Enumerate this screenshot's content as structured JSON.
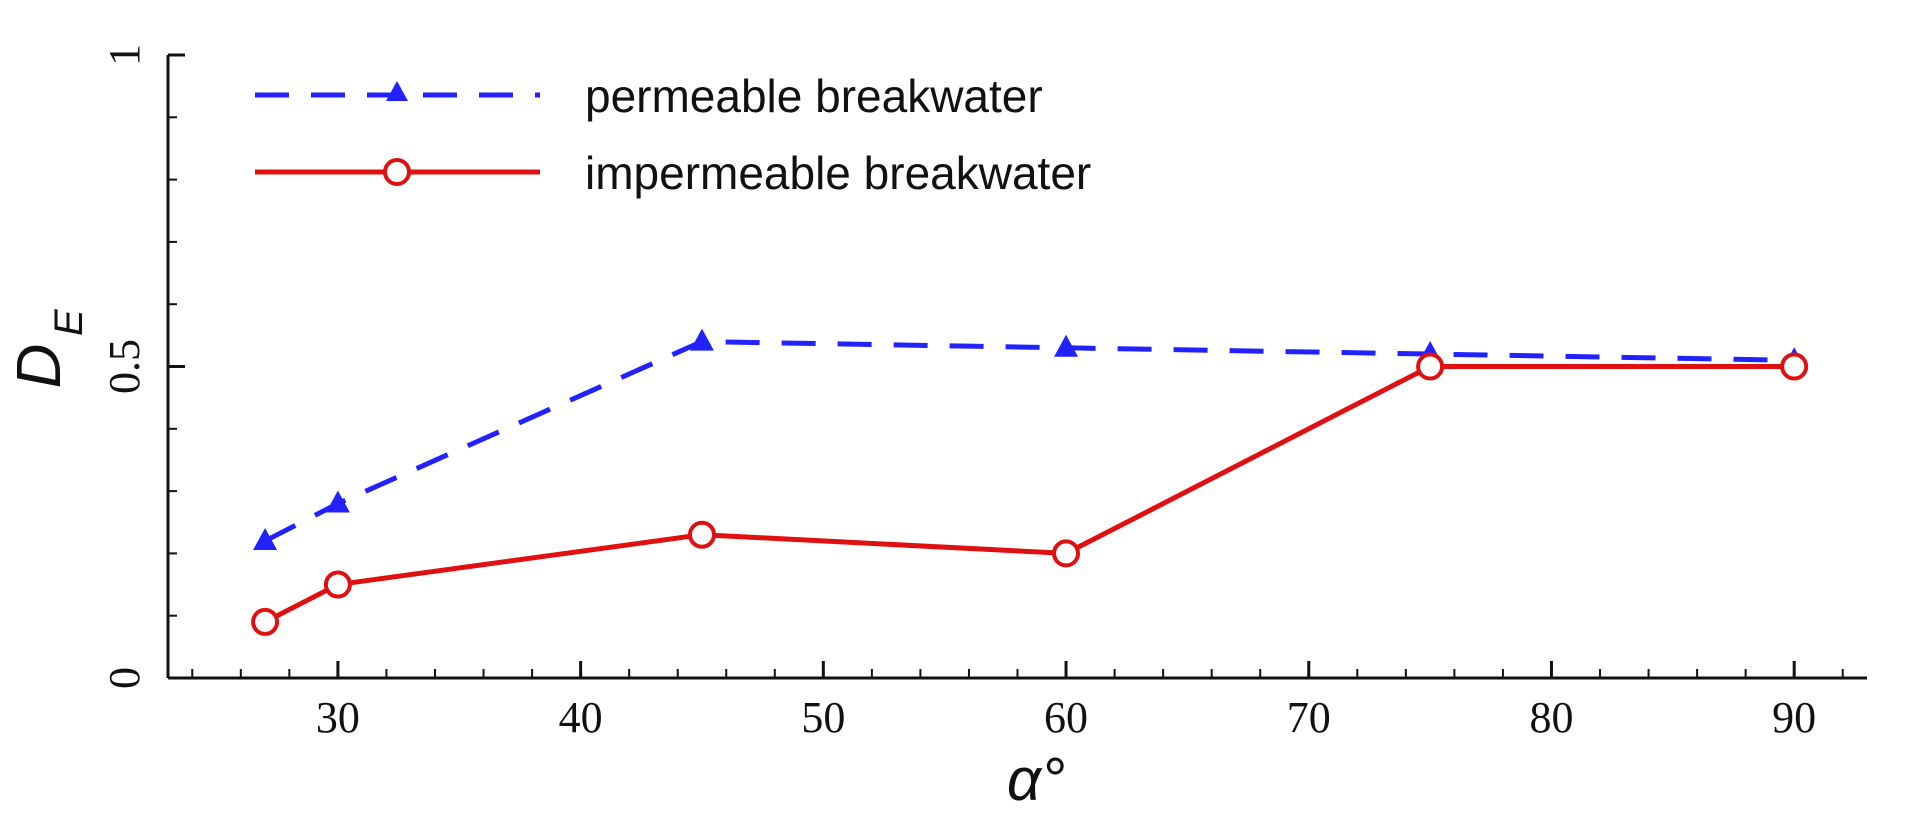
{
  "chart_data": {
    "type": "line",
    "xlabel": "α°",
    "ylabel_main": "D",
    "ylabel_sub": "E",
    "xlim": [
      23,
      93
    ],
    "ylim": [
      0,
      1
    ],
    "x_major_ticks": [
      30,
      40,
      50,
      60,
      70,
      80,
      90
    ],
    "x_minor_step": 2,
    "y_major_ticks": [
      0,
      0.5,
      1
    ],
    "y_major_labels": [
      "0",
      "0.5",
      "1"
    ],
    "y_minor_step": 0.1,
    "legend_position": "top-left",
    "series": [
      {
        "name": "permeable breakwater",
        "color": "#2222ff",
        "line_style": "dashed",
        "marker": "triangle",
        "x": [
          27,
          30,
          45,
          60,
          75,
          90
        ],
        "y": [
          0.22,
          0.28,
          0.54,
          0.53,
          0.52,
          0.51
        ]
      },
      {
        "name": "impermeable breakwater",
        "color": "#e01010",
        "line_style": "solid",
        "marker": "circle",
        "x": [
          27,
          30,
          45,
          60,
          75,
          90
        ],
        "y": [
          0.09,
          0.15,
          0.23,
          0.2,
          0.5,
          0.5
        ]
      }
    ]
  }
}
